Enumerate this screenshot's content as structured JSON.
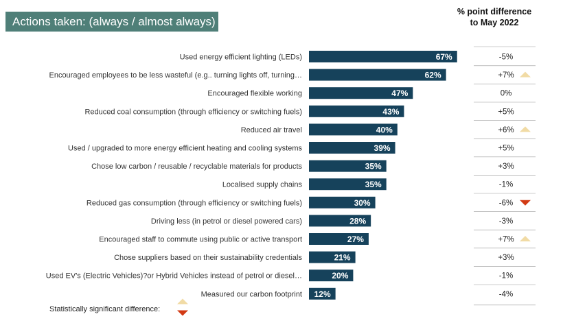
{
  "title": "Actions taken: (always / almost always)",
  "diff_header_line1": "% point difference",
  "diff_header_line2": "to May 2022",
  "legend_label": "Statistically significant difference:",
  "colors": {
    "bar": "#16425b",
    "title_bg": "#4f7f78",
    "up": "#f1dba5",
    "down": "#d23a14",
    "divider": "#999999"
  },
  "chart_data": {
    "type": "bar",
    "orientation": "horizontal",
    "categories": [
      "Used energy efficient lighting (LEDs)",
      "Encouraged employees to be less wasteful (e.g.. turning lights off, turning…",
      "Encouraged flexible working",
      "Reduced coal consumption (through efficiency or switching fuels)",
      "Reduced air travel",
      "Used / upgraded to more energy efficient heating and cooling systems",
      "Chose low carbon / reusable / recyclable materials for products",
      "Localised supply chains",
      "Reduced gas consumption (through efficiency or switching fuels)",
      "Driving less (in petrol or diesel powered cars)",
      "Encouraged staff to commute using public or active transport",
      "Chose suppliers based on their sustainability credentials",
      "Used EV's (Electric Vehicles)?or Hybrid Vehicles instead of petrol or diesel…",
      "Measured our carbon footprint"
    ],
    "values": [
      67,
      62,
      47,
      43,
      40,
      39,
      35,
      35,
      30,
      28,
      27,
      21,
      20,
      12
    ],
    "value_labels": [
      "67%",
      "62%",
      "47%",
      "43%",
      "40%",
      "39%",
      "35%",
      "35%",
      "30%",
      "28%",
      "27%",
      "21%",
      "20%",
      "12%"
    ],
    "differences": [
      "-5%",
      "+7%",
      "0%",
      "+5%",
      "+6%",
      "+5%",
      "+3%",
      "-1%",
      "-6%",
      "-3%",
      "+7%",
      "+3%",
      "-1%",
      "-4%"
    ],
    "significant": [
      "none",
      "up",
      "none",
      "none",
      "up",
      "none",
      "none",
      "none",
      "down",
      "none",
      "up",
      "none",
      "none",
      "none"
    ],
    "xlim": [
      0,
      100
    ],
    "grid": false,
    "legend": "bottom-left"
  }
}
